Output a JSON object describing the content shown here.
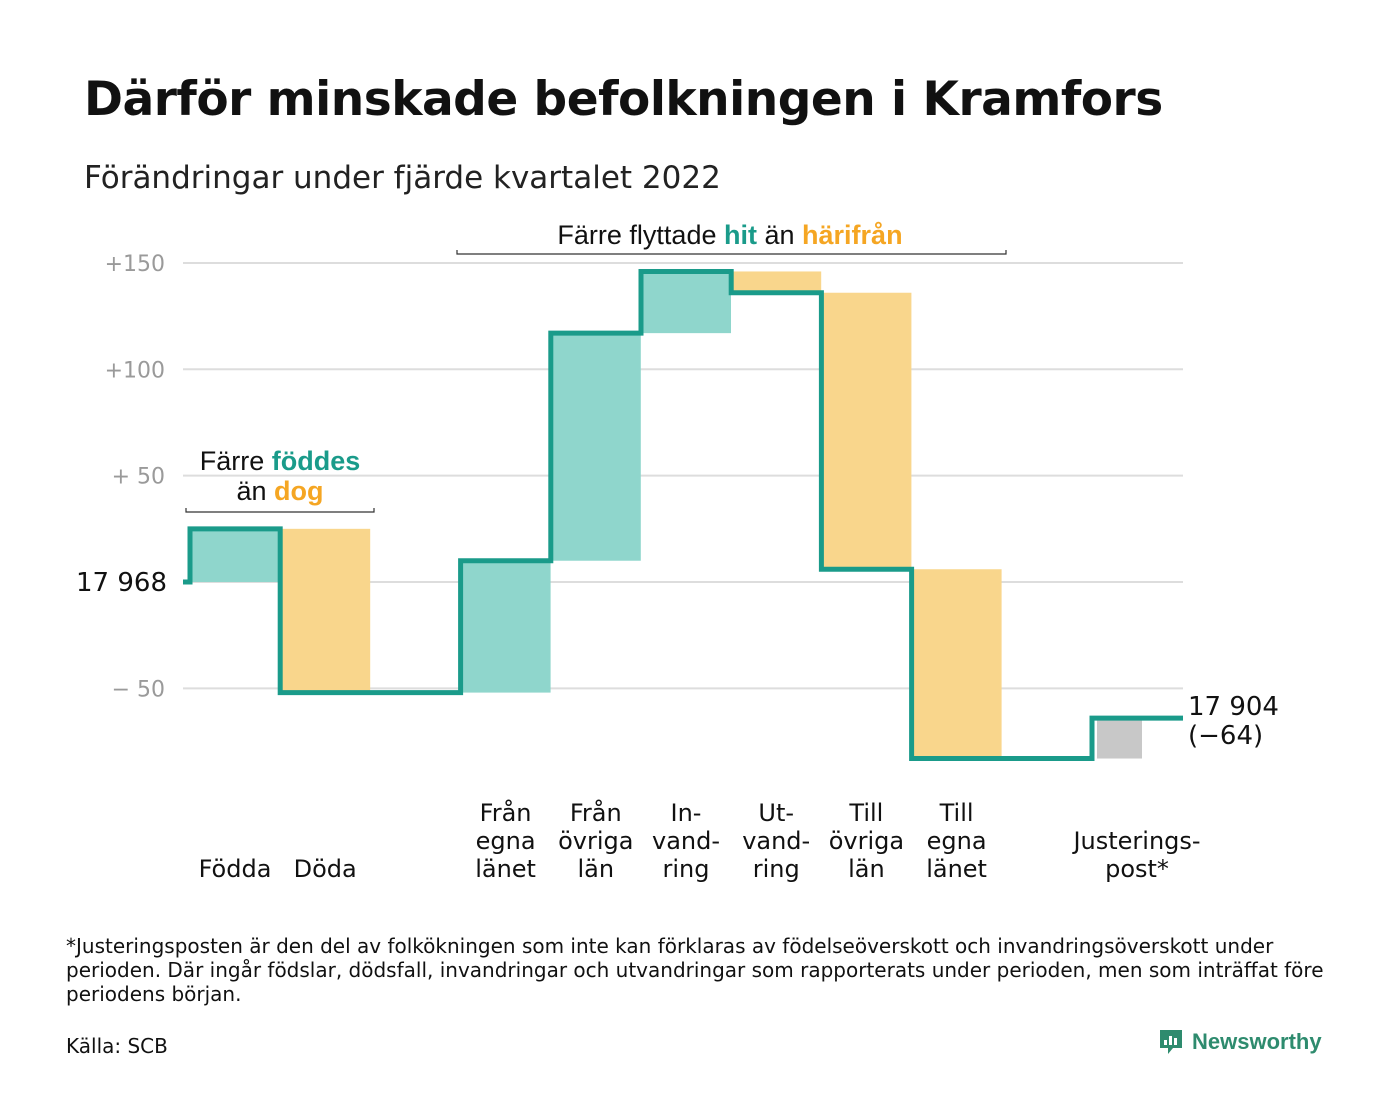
{
  "title": "Därför minskade befolkningen i Kramfors",
  "subtitle": "Förändringar under fjärde kvartalet 2022",
  "colors": {
    "increase": "#8fd6cc",
    "decrease": "#f9d68c",
    "adjustment": "#c8c8c8",
    "step_line": "#1a9b8a",
    "grid": "#dddddd"
  },
  "chart_data": {
    "type": "bar",
    "subtype": "waterfall",
    "start_label": "17 968",
    "end_label": "17 904",
    "end_change_label": "(−64)",
    "y_ticks": [
      {
        "value": 150,
        "label": "+150"
      },
      {
        "value": 100,
        "label": "+100"
      },
      {
        "value": 50,
        "label": "+ 50"
      },
      {
        "value": -50,
        "label": "− 50"
      }
    ],
    "ylim": [
      -85,
      160
    ],
    "grid": true,
    "categories": [
      {
        "lines": [
          "Födda"
        ],
        "delta": 25,
        "kind": "increase"
      },
      {
        "lines": [
          "Döda"
        ],
        "delta": -77,
        "kind": "decrease"
      },
      {
        "lines": [
          ""
        ],
        "delta": 0,
        "kind": "decrease"
      },
      {
        "lines": [
          "Från",
          "egna",
          "länet"
        ],
        "delta": 62,
        "kind": "increase"
      },
      {
        "lines": [
          "Från",
          "övriga",
          "län"
        ],
        "delta": 107,
        "kind": "increase"
      },
      {
        "lines": [
          "In-",
          "vand-",
          "ring"
        ],
        "delta": 29,
        "kind": "increase"
      },
      {
        "lines": [
          "Ut-",
          "vand-",
          "ring"
        ],
        "delta": -10,
        "kind": "decrease"
      },
      {
        "lines": [
          "Till",
          "övriga",
          "län"
        ],
        "delta": -130,
        "kind": "decrease"
      },
      {
        "lines": [
          "Till",
          "egna",
          "länet"
        ],
        "delta": -89,
        "kind": "decrease"
      },
      {
        "lines": [
          ""
        ],
        "delta": 0,
        "kind": "decrease"
      },
      {
        "lines": [
          "Justerings-",
          "post*"
        ],
        "delta": 19,
        "kind": "adjustment"
      }
    ],
    "annotations": [
      {
        "parts": [
          {
            "text": "Färre ",
            "style": "plain"
          },
          {
            "text": "föddes",
            "style": "teal"
          }
        ],
        "parts2": [
          {
            "text": "än ",
            "style": "plain"
          },
          {
            "text": "dog",
            "style": "orange"
          }
        ]
      },
      {
        "parts": [
          {
            "text": "Färre flyttade ",
            "style": "plain"
          },
          {
            "text": "hit",
            "style": "teal"
          },
          {
            "text": " än ",
            "style": "plain"
          },
          {
            "text": "härifrån",
            "style": "orange"
          }
        ]
      }
    ]
  },
  "footnote": "*Justeringsposten är den del av folkökningen som inte kan förklaras av födelseöverskott och invandringsöverskott under perioden. Där ingår födslar, dödsfall, invandringar och utvandringar som rapporterats under perioden, men som inträffat före periodens början.",
  "source": "Källa: SCB",
  "brand": "Newsworthy",
  "brand_icon": "chart-bubble-icon"
}
